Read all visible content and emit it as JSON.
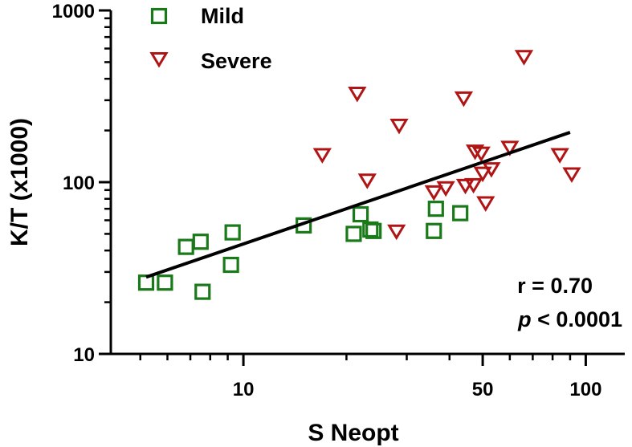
{
  "colors": {
    "mild": "#1a7a1a",
    "severe": "#b01515",
    "axis": "#000000",
    "fit": "#000000",
    "background": "#ffffff"
  },
  "chart_data": {
    "type": "scatter",
    "xscale": "log",
    "yscale": "log",
    "xlabel": "S Neopt",
    "ylabel": "K/T (x1000)",
    "xlim": [
      4.1,
      130
    ],
    "ylim": [
      10,
      1000
    ],
    "x_ticks": [
      10,
      50,
      100
    ],
    "x_tick_labels": [
      "10",
      "50",
      "100"
    ],
    "y_ticks": [
      10,
      100,
      1000
    ],
    "y_tick_labels": [
      "10",
      "100",
      "1000"
    ],
    "legend": {
      "position": "top-left",
      "entries": [
        {
          "series": "mild",
          "label": "Mild",
          "marker": "square"
        },
        {
          "series": "severe",
          "label": "Severe",
          "marker": "triangle-down"
        }
      ]
    },
    "series": [
      {
        "name": "Mild",
        "key": "mild",
        "marker": "square",
        "points": [
          {
            "x": 5.2,
            "y": 26
          },
          {
            "x": 5.9,
            "y": 26
          },
          {
            "x": 6.8,
            "y": 42
          },
          {
            "x": 7.5,
            "y": 45
          },
          {
            "x": 7.6,
            "y": 23
          },
          {
            "x": 9.2,
            "y": 33
          },
          {
            "x": 9.3,
            "y": 51
          },
          {
            "x": 15,
            "y": 56
          },
          {
            "x": 21,
            "y": 50
          },
          {
            "x": 22,
            "y": 65
          },
          {
            "x": 23.5,
            "y": 53
          },
          {
            "x": 24,
            "y": 52
          },
          {
            "x": 36,
            "y": 52
          },
          {
            "x": 36.5,
            "y": 70
          },
          {
            "x": 43,
            "y": 66
          }
        ]
      },
      {
        "name": "Severe",
        "key": "severe",
        "marker": "triangle-down",
        "points": [
          {
            "x": 17,
            "y": 145
          },
          {
            "x": 21.5,
            "y": 330
          },
          {
            "x": 23,
            "y": 103
          },
          {
            "x": 28,
            "y": 52
          },
          {
            "x": 28.5,
            "y": 215
          },
          {
            "x": 36,
            "y": 88
          },
          {
            "x": 39,
            "y": 93
          },
          {
            "x": 44,
            "y": 310
          },
          {
            "x": 44.5,
            "y": 96
          },
          {
            "x": 47,
            "y": 97
          },
          {
            "x": 47.5,
            "y": 152
          },
          {
            "x": 49.5,
            "y": 148
          },
          {
            "x": 50,
            "y": 113
          },
          {
            "x": 51,
            "y": 76
          },
          {
            "x": 53,
            "y": 120
          },
          {
            "x": 60,
            "y": 160
          },
          {
            "x": 66,
            "y": 540
          },
          {
            "x": 84,
            "y": 145
          },
          {
            "x": 91,
            "y": 112
          }
        ]
      }
    ],
    "fit_line": {
      "x": [
        5.2,
        90
      ],
      "y": [
        28,
        195
      ]
    },
    "annotation": {
      "r_text": "r = 0.70",
      "p_symbol": "p",
      "p_rest": " < 0.0001"
    }
  }
}
